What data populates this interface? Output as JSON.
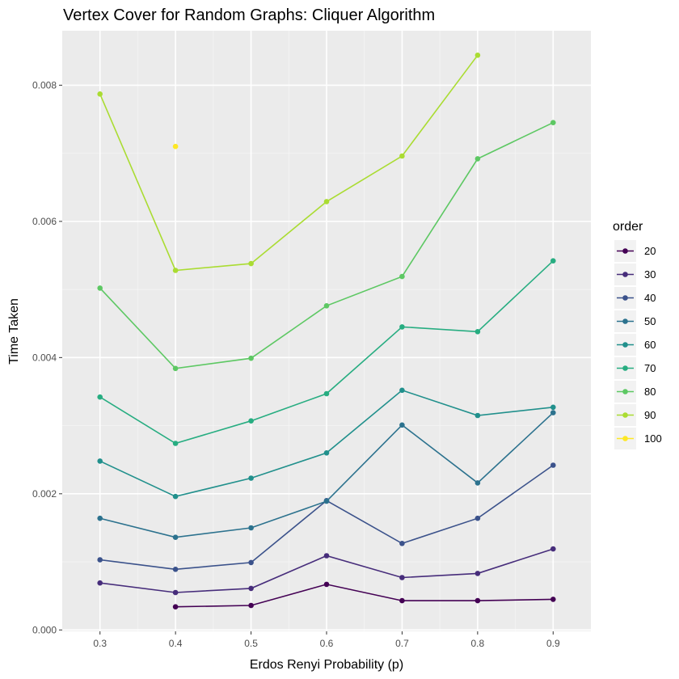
{
  "chart_data": {
    "type": "line",
    "title": "Vertex Cover for Random Graphs: Cliquer Algorithm",
    "xlabel": "Erdos Renyi Probability (p)",
    "ylabel": "Time Taken",
    "xlim": [
      0.25,
      0.95
    ],
    "ylim": [
      -2e-05,
      0.0088
    ],
    "x_ticks": [
      "0.3",
      "0.4",
      "0.5",
      "0.6",
      "0.7",
      "0.8",
      "0.9"
    ],
    "y_ticks": [
      "0.000",
      "0.002",
      "0.004",
      "0.006",
      "0.008"
    ],
    "grid": true,
    "legend_title": "order",
    "legend_position": "right",
    "x": [
      0.3,
      0.4,
      0.5,
      0.6,
      0.7,
      0.8,
      0.9
    ],
    "series": [
      {
        "name": "20",
        "color": "#440154",
        "values": [
          null,
          0.00034,
          0.00036,
          0.00067,
          0.00043,
          0.00043,
          0.00045
        ]
      },
      {
        "name": "30",
        "color": "#472D7B",
        "values": [
          0.00069,
          0.00055,
          0.00061,
          0.00109,
          0.00077,
          0.00083,
          0.00119
        ]
      },
      {
        "name": "40",
        "color": "#3B528B",
        "values": [
          0.00103,
          0.00089,
          0.00099,
          0.0019,
          0.00127,
          0.00164,
          0.00242
        ]
      },
      {
        "name": "50",
        "color": "#2C728E",
        "values": [
          0.00164,
          0.00136,
          0.0015,
          0.00189,
          0.00301,
          0.00216,
          0.00319
        ]
      },
      {
        "name": "60",
        "color": "#21908C",
        "values": [
          0.00248,
          0.00196,
          0.00223,
          0.0026,
          0.00352,
          0.00315,
          0.00327
        ]
      },
      {
        "name": "70",
        "color": "#27AD81",
        "values": [
          0.00342,
          0.00274,
          0.00307,
          0.00347,
          0.00445,
          0.00438,
          0.00542
        ]
      },
      {
        "name": "80",
        "color": "#5DC863",
        "values": [
          0.00502,
          0.00384,
          0.00399,
          0.00476,
          0.00519,
          0.00692,
          0.00745
        ]
      },
      {
        "name": "90",
        "color": "#AADC32",
        "values": [
          0.00787,
          0.00528,
          0.00538,
          0.00629,
          0.00696,
          0.00844,
          null
        ]
      },
      {
        "name": "100",
        "color": "#FDE725",
        "values": [
          null,
          0.0071,
          null,
          null,
          null,
          null,
          null
        ]
      }
    ]
  }
}
